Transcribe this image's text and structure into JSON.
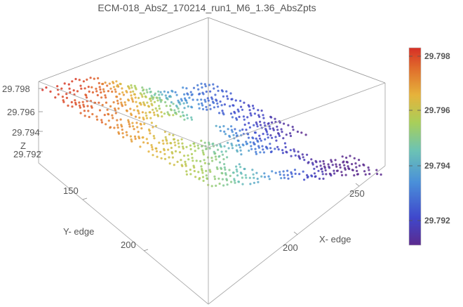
{
  "chart_data": {
    "type": "scatter",
    "title": "ECM-018_AbsZ_170214_run1_M6_1.36_AbsZpts",
    "xlabel": "X- edge",
    "ylabel": "Y- edge",
    "zlabel": "Z",
    "x_ticks": [
      "200",
      "250"
    ],
    "y_ticks": [
      "150",
      "200"
    ],
    "z_ticks": [
      "29.798",
      "29.796",
      "29.794",
      "29.792"
    ],
    "xlim": [
      170,
      290
    ],
    "ylim": [
      110,
      235
    ],
    "zlim": [
      29.791,
      29.799
    ],
    "colorbar": {
      "ticks": [
        "29.798",
        "29.796",
        "29.794",
        "29.792"
      ],
      "range": [
        29.7912,
        29.7982
      ],
      "colors": [
        "#5b2a8e",
        "#3f48cc",
        "#4a90d9",
        "#6cc3b4",
        "#a8cf5a",
        "#e6b33b",
        "#e06a2b",
        "#d62f26"
      ]
    },
    "grid": false,
    "box": true
  }
}
